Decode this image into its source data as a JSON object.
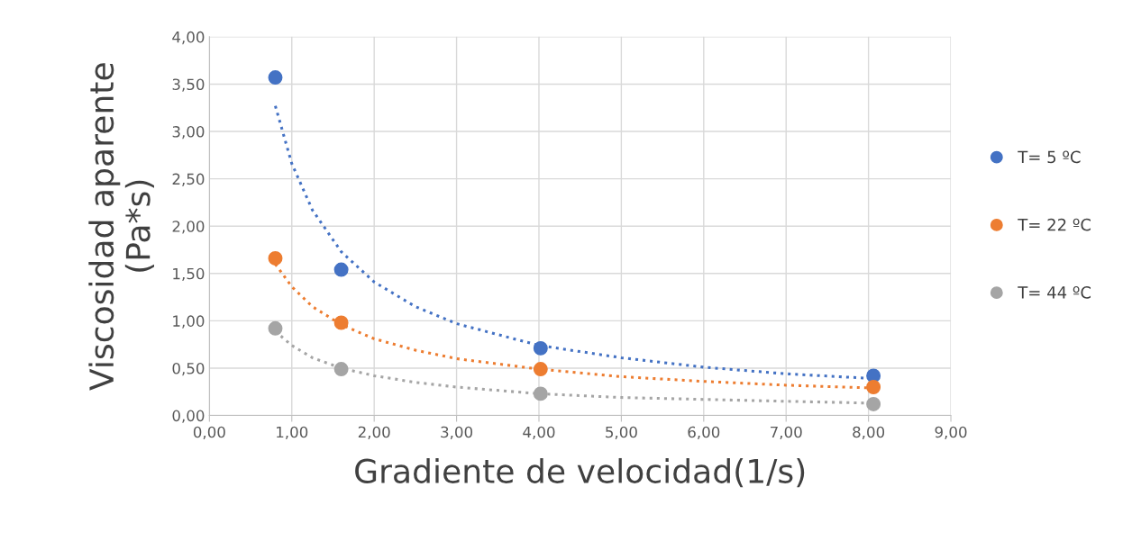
{
  "chart_data": {
    "type": "scatter",
    "xlabel": "Gradiente de velocidad(1/s)",
    "ylabel": "Viscosidad aparente\n(Pa*s)",
    "x": [
      0.8,
      1.6,
      4.02,
      8.06
    ],
    "series": [
      {
        "name": "T= 5 ºC",
        "color": "#4472c4",
        "values": [
          3.57,
          1.54,
          0.71,
          0.42
        ]
      },
      {
        "name": "T= 22 ºC",
        "color": "#ed7d31",
        "values": [
          1.66,
          0.98,
          0.49,
          0.3
        ]
      },
      {
        "name": "T= 44 ºC",
        "color": "#a5a5a5",
        "values": [
          0.92,
          0.49,
          0.23,
          0.12
        ]
      },
      {
        "type": "line",
        "line_style": "dotted",
        "marker": "none",
        "color": "#4472c4",
        "x": [
          0.8,
          1.0,
          1.25,
          1.6,
          2,
          2.5,
          3,
          4,
          5,
          6,
          7,
          8.06
        ],
        "values": [
          3.27,
          2.66,
          2.17,
          1.73,
          1.41,
          1.15,
          0.97,
          0.74,
          0.61,
          0.51,
          0.44,
          0.39
        ]
      },
      {
        "type": "line",
        "line_style": "dotted",
        "marker": "none",
        "color": "#ed7d31",
        "x": [
          0.8,
          1.0,
          1.25,
          1.6,
          2,
          2.5,
          3,
          4,
          5,
          6,
          7,
          8.06
        ],
        "values": [
          1.6,
          1.36,
          1.15,
          0.96,
          0.81,
          0.69,
          0.6,
          0.49,
          0.41,
          0.36,
          0.32,
          0.29
        ]
      },
      {
        "type": "line",
        "line_style": "dotted",
        "marker": "none",
        "color": "#a5a5a5",
        "x": [
          0.8,
          1.0,
          1.25,
          1.6,
          2,
          2.5,
          3,
          4,
          5,
          6,
          7,
          8.06
        ],
        "values": [
          0.89,
          0.74,
          0.61,
          0.5,
          0.42,
          0.35,
          0.3,
          0.23,
          0.19,
          0.17,
          0.15,
          0.13
        ]
      }
    ],
    "marker": "circle",
    "xlim": [
      0,
      9
    ],
    "xticks": [
      {
        "value": 0,
        "label": "0,00"
      },
      {
        "value": 1,
        "label": "1,00"
      },
      {
        "value": 2,
        "label": "2,00"
      },
      {
        "value": 3,
        "label": "3,00"
      },
      {
        "value": 4,
        "label": "4,00"
      },
      {
        "value": 5,
        "label": "5,00"
      },
      {
        "value": 6,
        "label": "6,00"
      },
      {
        "value": 7,
        "label": "7,00"
      },
      {
        "value": 8,
        "label": "8,00"
      },
      {
        "value": 9,
        "label": "9,00"
      }
    ],
    "ylim": [
      0,
      4
    ],
    "yticks": [
      {
        "value": 0,
        "label": "0,00"
      },
      {
        "value": 0.5,
        "label": "0,50"
      },
      {
        "value": 1,
        "label": "1,00"
      },
      {
        "value": 1.5,
        "label": "1,50"
      },
      {
        "value": 2,
        "label": "2,00"
      },
      {
        "value": 2.5,
        "label": "2,50"
      },
      {
        "value": 3,
        "label": "3,00"
      },
      {
        "value": 3.5,
        "label": "3,50"
      },
      {
        "value": 4,
        "label": "4,00"
      }
    ],
    "grid": true,
    "legend": "right"
  }
}
